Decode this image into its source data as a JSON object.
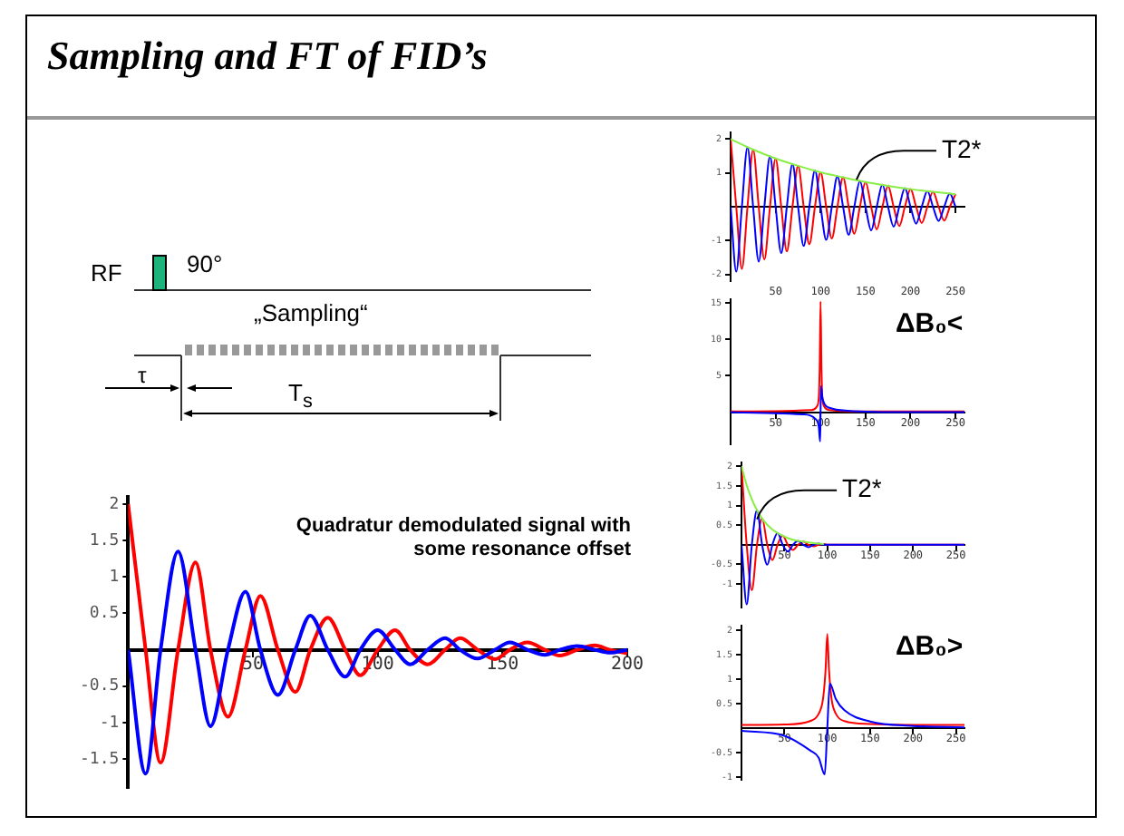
{
  "chart_data": [
    {
      "type": "other",
      "title": "Sampling and FT of FID’s",
      "annotations": [
        "RF",
        "90°",
        "„Sampling“",
        "τ",
        "T$_{s}$"
      ]
    },
    {
      "type": "line",
      "annotations": [
        "Quadratur demodulated signal with some resonance offset"
      ],
      "xlim": [
        0,
        200
      ],
      "ylim": [
        -1.9,
        2.1
      ],
      "xticks": [
        50,
        100,
        150,
        200
      ],
      "yticks": [
        -1.5,
        -1,
        -0.5,
        0.5,
        1,
        1.5,
        2
      ],
      "grid": false,
      "legend": false,
      "x": [
        0,
        7,
        13,
        20,
        27,
        33,
        40,
        47,
        53,
        60,
        67,
        73,
        80,
        87,
        93,
        100,
        107,
        113,
        120,
        127,
        133,
        140,
        147,
        153,
        160,
        167,
        173,
        180,
        187,
        193,
        200
      ],
      "series": [
        {
          "color": "#ff0000",
          "values": [
            2,
            0,
            -1.55,
            0,
            1.2,
            0,
            -0.92,
            0,
            0.74,
            0,
            -0.58,
            0,
            0.44,
            0,
            -0.35,
            0,
            0.27,
            0,
            -0.2,
            0,
            0.16,
            0,
            -0.13,
            0,
            0.1,
            0,
            -0.08,
            0,
            0.06,
            0,
            -0.05
          ]
        },
        {
          "color": "#0000ff",
          "values": [
            0,
            -1.7,
            0,
            1.35,
            0,
            -1.05,
            0,
            0.8,
            0,
            -0.62,
            0,
            0.47,
            0,
            -0.37,
            0,
            0.27,
            0,
            -0.2,
            0,
            0.16,
            0,
            -0.12,
            0,
            0.1,
            0,
            -0.07,
            0,
            0.05,
            0,
            -0.04,
            0
          ]
        }
      ]
    },
    {
      "type": "line",
      "annotations": [
        {
          "text": "T2*",
          "x": 140,
          "y": 0.8
        }
      ],
      "xlim": [
        0,
        260
      ],
      "ylim": [
        -2.2,
        2.2
      ],
      "xticks": [
        50,
        100,
        150,
        200,
        250
      ],
      "yticks": [
        -2,
        -1,
        1,
        2
      ],
      "grid": false,
      "legend": false,
      "x": [
        0,
        6.25,
        12.5,
        18.75,
        25,
        31.25,
        37.5,
        43.75,
        50,
        56.25,
        62.5,
        68.75,
        75,
        81.25,
        87.5,
        93.75,
        100,
        106.25,
        112.5,
        118.75,
        125,
        131.25,
        137.5,
        143.75,
        150,
        156.25,
        162.5,
        168.75,
        175,
        181.25,
        187.5,
        193.75,
        200,
        206.25,
        212.5,
        218.75,
        225,
        231.25,
        237.5,
        243.75,
        250
      ],
      "series": [
        {
          "color": "#ff0000",
          "values": [
            2,
            0,
            -1.84,
            0,
            1.69,
            0,
            -1.56,
            0,
            1.43,
            0,
            -1.32,
            0,
            1.21,
            0,
            -1.11,
            0,
            1.02,
            0,
            -0.94,
            0,
            0.87,
            0,
            -0.8,
            0,
            0.73,
            0,
            -0.67,
            0,
            0.62,
            0,
            -0.57,
            0,
            0.52,
            0,
            -0.48,
            0,
            0.44,
            0,
            -0.41,
            0,
            0.37
          ]
        },
        {
          "color": "#0000ff",
          "values": [
            0,
            -1.92,
            0,
            1.76,
            0,
            -1.62,
            0,
            1.49,
            0,
            -1.37,
            0,
            1.26,
            0,
            -1.16,
            0,
            1.07,
            0,
            -0.98,
            0,
            0.9,
            0,
            -0.83,
            0,
            0.76,
            0,
            -0.7,
            0,
            0.65,
            0,
            -0.59,
            0,
            0.55,
            0,
            -0.5,
            0,
            0.46,
            0,
            -0.42,
            0,
            0.39,
            0
          ]
        },
        {
          "color": "#88ee44",
          "x": [
            0,
            25,
            50,
            75,
            100,
            125,
            150,
            175,
            200,
            225,
            250
          ],
          "values": [
            2,
            1.69,
            1.43,
            1.21,
            1.02,
            0.87,
            0.73,
            0.62,
            0.52,
            0.44,
            0.37
          ]
        }
      ]
    },
    {
      "type": "line",
      "annotations": [
        "ΔB₀<"
      ],
      "xlim": [
        0,
        260
      ],
      "ylim": [
        -4.4,
        15.5
      ],
      "xticks": [
        50,
        100,
        150,
        200,
        250
      ],
      "yticks": [
        5,
        10,
        15
      ],
      "grid": false,
      "legend": false,
      "series": [
        {
          "color": "#ff0000",
          "x": [
            0,
            90,
            96,
            98,
            99,
            100,
            101,
            102,
            104,
            110,
            150,
            260
          ],
          "values": [
            0.1,
            0.3,
            0.8,
            2,
            6,
            15.2,
            6,
            2,
            0.8,
            0.3,
            0.1,
            0.1
          ]
        },
        {
          "color": "#0000ff",
          "x": [
            0,
            80,
            95,
            98,
            99.5,
            100,
            100.5,
            102,
            105,
            110,
            130,
            200,
            260
          ],
          "values": [
            0,
            -0.3,
            -1,
            -2,
            -4,
            0,
            3.6,
            2,
            1,
            0.6,
            0.2,
            0,
            0
          ]
        }
      ]
    },
    {
      "type": "line",
      "annotations": [
        {
          "text": "T2*",
          "x": 18,
          "y": 0.65
        }
      ],
      "xlim": [
        0,
        260
      ],
      "ylim": [
        -1.6,
        2.1
      ],
      "xticks": [
        50,
        100,
        150,
        200,
        250
      ],
      "yticks": [
        -1,
        -0.5,
        0.5,
        1,
        1.5,
        2
      ],
      "grid": false,
      "legend": false,
      "x": [
        0,
        6,
        12,
        18,
        24,
        30,
        36,
        42,
        48,
        54,
        60,
        66,
        72,
        78,
        84,
        90,
        96,
        100,
        260
      ],
      "series": [
        {
          "color": "#ff0000",
          "values": [
            2,
            0,
            -1.16,
            0,
            0.67,
            0,
            -0.39,
            0,
            0.23,
            0,
            -0.13,
            0,
            0.08,
            0,
            -0.04,
            0,
            0.02,
            0,
            0
          ]
        },
        {
          "color": "#0000ff",
          "values": [
            0,
            -1.52,
            0,
            0.88,
            0,
            -0.51,
            0,
            0.3,
            0,
            -0.17,
            0,
            0.1,
            0,
            -0.06,
            0,
            0.03,
            0,
            0,
            0
          ]
        },
        {
          "color": "#88ee44",
          "x": [
            0,
            6,
            12,
            18,
            24,
            30,
            36,
            42,
            48,
            54,
            60,
            66,
            72,
            78,
            84,
            90,
            96
          ],
          "values": [
            2,
            1.52,
            1.16,
            0.88,
            0.67,
            0.51,
            0.39,
            0.3,
            0.23,
            0.17,
            0.13,
            0.1,
            0.08,
            0.06,
            0.04,
            0.03,
            0.02
          ]
        }
      ]
    },
    {
      "type": "line",
      "annotations": [
        "ΔB₀>"
      ],
      "xlim": [
        0,
        260
      ],
      "ylim": [
        -1.05,
        2.1
      ],
      "xticks": [
        50,
        100,
        150,
        200,
        250
      ],
      "yticks": [
        -1,
        -0.5,
        0.5,
        1,
        1.5,
        2
      ],
      "grid": false,
      "legend": false,
      "series": [
        {
          "color": "#ff0000",
          "x": [
            0,
            50,
            80,
            90,
            95,
            98,
            100,
            102,
            105,
            110,
            120,
            150,
            200,
            260
          ],
          "values": [
            0.07,
            0.08,
            0.15,
            0.3,
            0.6,
            1.2,
            1.93,
            1.2,
            0.6,
            0.3,
            0.15,
            0.09,
            0.07,
            0.07
          ]
        },
        {
          "color": "#0000ff",
          "x": [
            0,
            50,
            80,
            90,
            97,
            100,
            103,
            110,
            120,
            150,
            200,
            260
          ],
          "values": [
            -0.05,
            -0.15,
            -0.45,
            -0.6,
            -0.94,
            0,
            0.92,
            0.6,
            0.37,
            0.14,
            0.05,
            0.02
          ]
        }
      ]
    }
  ]
}
